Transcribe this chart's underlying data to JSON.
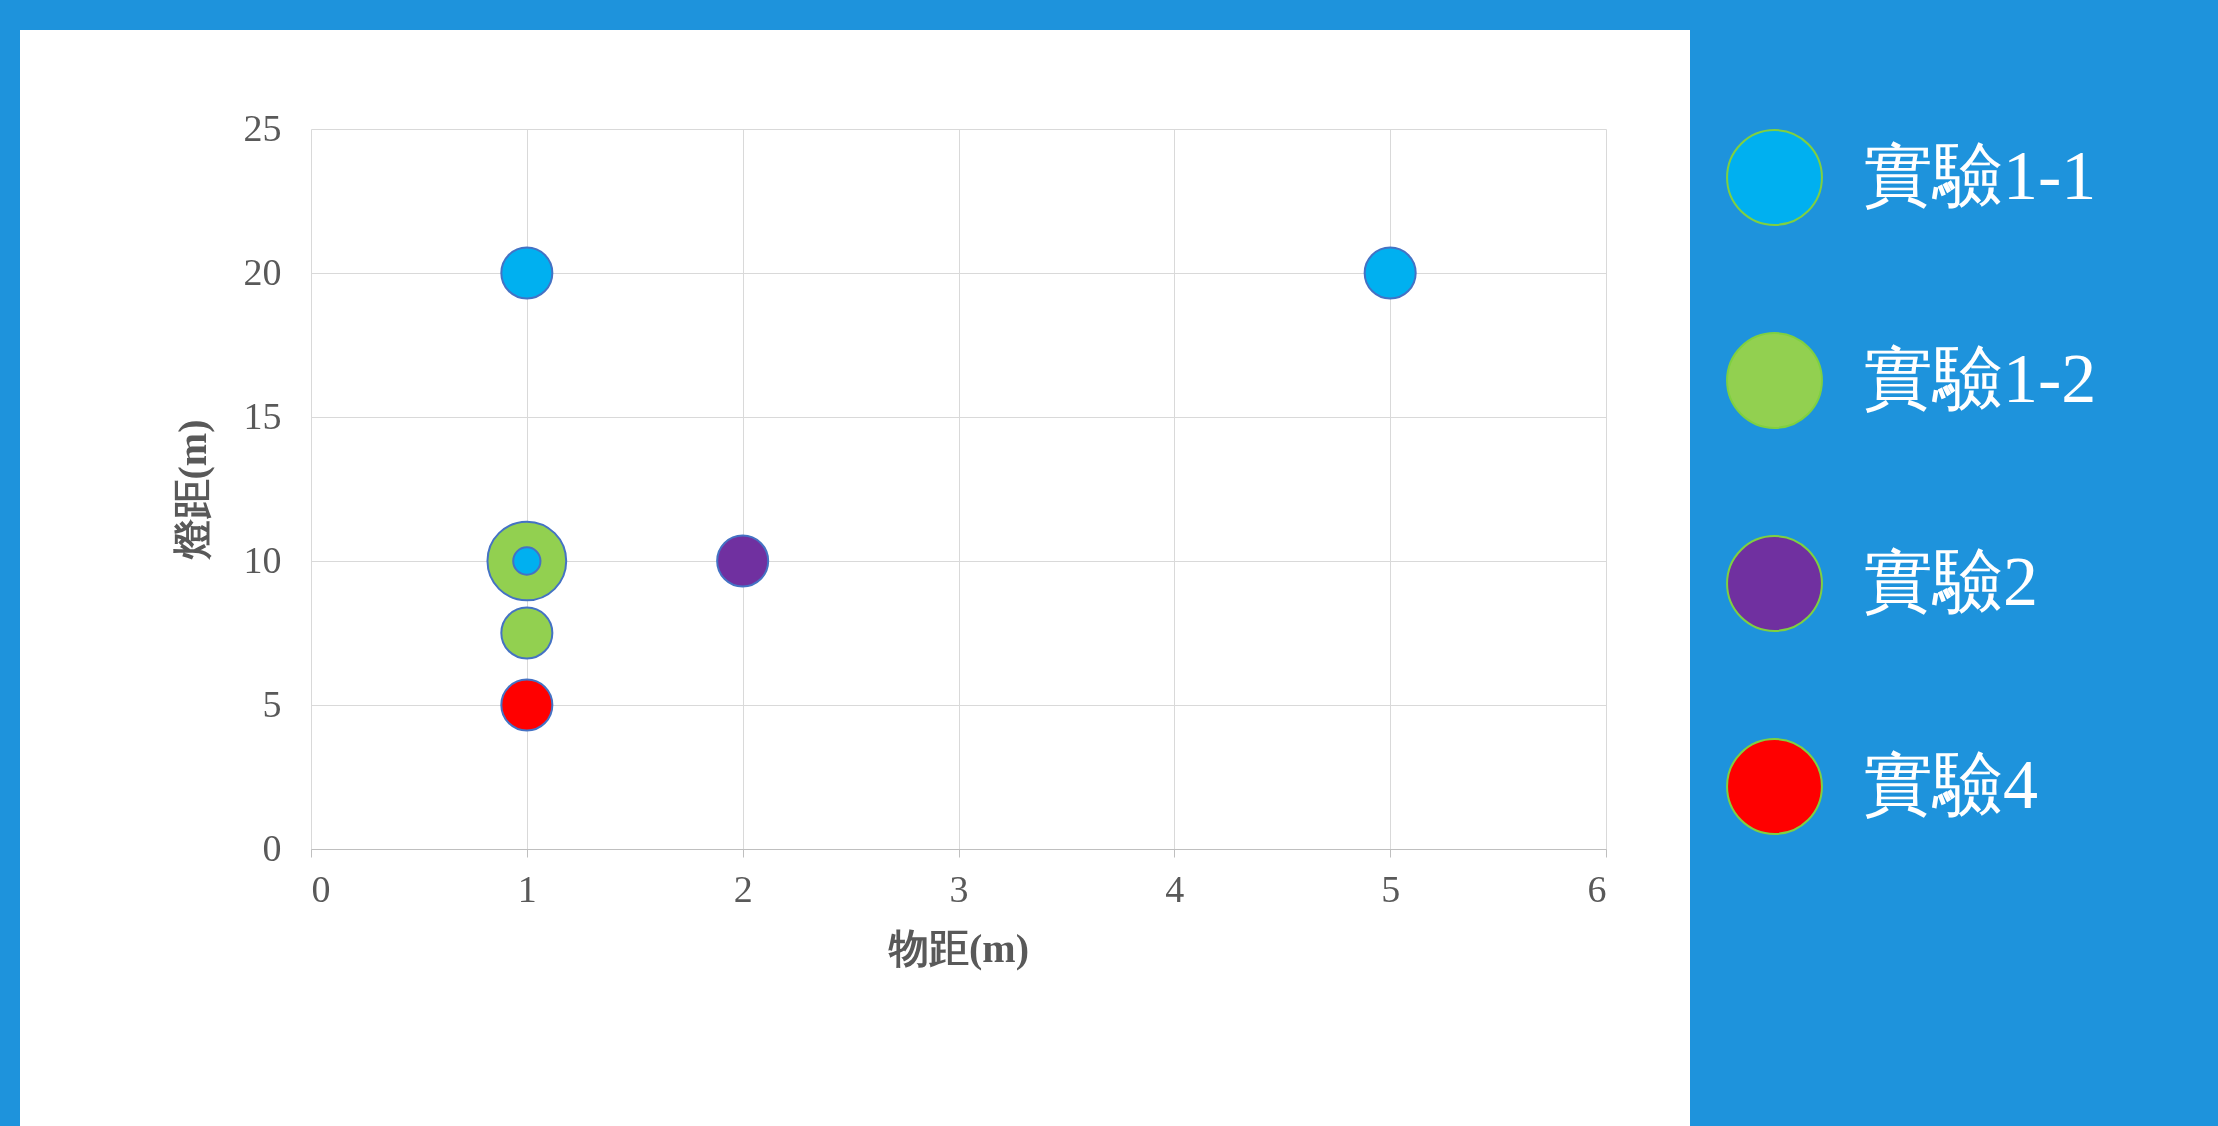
{
  "chart_data": {
    "type": "bubble",
    "xlabel": "物距(m)",
    "ylabel": "燈距(m)",
    "xlim": [
      0,
      6
    ],
    "xticks": [
      0,
      1,
      2,
      3,
      4,
      5,
      6
    ],
    "ylim": [
      0,
      25
    ],
    "yticks": [
      0,
      5,
      10,
      15,
      20,
      25
    ],
    "grid": true,
    "legend": "right",
    "marker": "circle",
    "series": [
      {
        "name": "實驗1-1",
        "color": "#00b0f0",
        "x": [
          1,
          5,
          1
        ],
        "values": [
          20,
          20,
          10
        ],
        "sizes": [
          0.42,
          0.42,
          0.12
        ]
      },
      {
        "name": "實驗1-2",
        "color": "#92d050",
        "x": [
          1,
          1
        ],
        "values": [
          10,
          7.5
        ],
        "sizes": [
          1,
          0.42
        ]
      },
      {
        "name": "實驗2",
        "color": "#7030a0",
        "x": [
          2
        ],
        "values": [
          10
        ],
        "sizes": [
          0.42
        ]
      },
      {
        "name": "實驗4",
        "color": "#ff0000",
        "x": [
          1
        ],
        "values": [
          5
        ],
        "sizes": [
          0.42
        ]
      }
    ]
  }
}
